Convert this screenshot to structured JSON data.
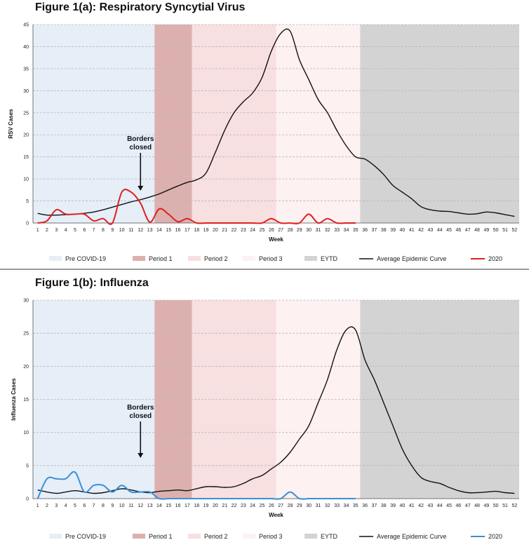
{
  "chart_data": [
    {
      "type": "line",
      "title": "Figure 1(a): Respiratory Syncytial Virus",
      "xlabel": "Week",
      "ylabel": "RSV Cases",
      "xlim": [
        1,
        52
      ],
      "ylim": [
        0,
        45
      ],
      "y_ticks": [
        0,
        5,
        10,
        15,
        20,
        25,
        30,
        35,
        40,
        45
      ],
      "x_ticks": [
        1,
        2,
        3,
        4,
        5,
        6,
        7,
        8,
        9,
        10,
        11,
        12,
        13,
        14,
        15,
        16,
        17,
        18,
        19,
        20,
        21,
        22,
        23,
        24,
        25,
        26,
        27,
        28,
        29,
        30,
        31,
        32,
        33,
        34,
        35,
        36,
        37,
        38,
        39,
        40,
        41,
        42,
        43,
        44,
        45,
        46,
        47,
        48,
        49,
        50,
        51,
        52
      ],
      "grid": true,
      "legend_position": "bottom",
      "periods": [
        {
          "name": "Pre COVID-19",
          "start": 0.5,
          "end": 13.5,
          "color": "#e6eef8"
        },
        {
          "name": "Period 1",
          "start": 13.5,
          "end": 17.5,
          "color": "#ddb0b0"
        },
        {
          "name": "Period 2",
          "start": 17.5,
          "end": 26.5,
          "color": "#f8dfe0"
        },
        {
          "name": "Period 3",
          "start": 26.5,
          "end": 35.5,
          "color": "#fdf1f1"
        },
        {
          "name": "EYTD",
          "start": 35.5,
          "end": 52.5,
          "color": "#d3d3d3"
        }
      ],
      "annotation": {
        "lines": [
          "Borders",
          "closed"
        ],
        "x": 12
      },
      "series": [
        {
          "name": "Average Epidemic Curve",
          "color": "#111111",
          "x": [
            1,
            2,
            3,
            4,
            5,
            6,
            7,
            8,
            9,
            10,
            11,
            12,
            13,
            14,
            15,
            16,
            17,
            18,
            19,
            20,
            21,
            22,
            23,
            24,
            25,
            26,
            27,
            28,
            29,
            30,
            31,
            32,
            33,
            34,
            35,
            36,
            37,
            38,
            39,
            40,
            41,
            42,
            43,
            44,
            45,
            46,
            47,
            48,
            49,
            50,
            51,
            52
          ],
          "values": [
            2.2,
            1.8,
            1.8,
            1.9,
            2.0,
            2.2,
            2.5,
            3.0,
            3.6,
            4.2,
            4.8,
            5.3,
            5.9,
            6.6,
            7.5,
            8.4,
            9.2,
            9.8,
            11.3,
            16.0,
            21.0,
            25.0,
            27.5,
            29.5,
            33.0,
            39.0,
            43.0,
            43.5,
            37.0,
            32.5,
            28.0,
            25.0,
            21.0,
            17.5,
            15.0,
            14.5,
            13.0,
            11.0,
            8.5,
            7.0,
            5.5,
            3.7,
            3.0,
            2.7,
            2.6,
            2.3,
            2.0,
            2.1,
            2.5,
            2.3,
            1.9,
            1.5
          ]
        },
        {
          "name": "2020",
          "color": "#e02020",
          "x": [
            1,
            2,
            3,
            4,
            5,
            6,
            7,
            8,
            9,
            10,
            11,
            12,
            13,
            14,
            15,
            16,
            17,
            18,
            19,
            20,
            21,
            22,
            23,
            24,
            25,
            26,
            27,
            28,
            29,
            30,
            31,
            32,
            33,
            34,
            35
          ],
          "values": [
            0,
            0.5,
            3.0,
            2.0,
            2.0,
            2.0,
            0.5,
            1.0,
            0,
            7.0,
            7.0,
            4.5,
            0.2,
            3.2,
            2.0,
            0.3,
            1.0,
            0,
            0,
            0,
            0,
            0,
            0,
            0,
            0,
            1.0,
            0,
            0,
            0,
            2.0,
            0,
            1.0,
            0,
            0,
            0
          ]
        }
      ]
    },
    {
      "type": "line",
      "title": "Figure 1(b): Influenza",
      "xlabel": "Week",
      "ylabel": "Influenza Cases",
      "xlim": [
        1,
        52
      ],
      "ylim": [
        0,
        30
      ],
      "y_ticks": [
        0,
        5,
        10,
        15,
        20,
        25,
        30
      ],
      "x_ticks": [
        1,
        2,
        3,
        4,
        5,
        6,
        7,
        8,
        9,
        10,
        11,
        12,
        13,
        14,
        15,
        16,
        17,
        18,
        19,
        20,
        21,
        22,
        23,
        24,
        25,
        26,
        27,
        28,
        29,
        30,
        31,
        32,
        33,
        34,
        35,
        36,
        37,
        38,
        39,
        40,
        41,
        42,
        43,
        44,
        45,
        46,
        47,
        48,
        49,
        50,
        51,
        52
      ],
      "grid": true,
      "legend_position": "bottom",
      "periods": [
        {
          "name": "Pre COVID-19",
          "start": 0.5,
          "end": 13.5,
          "color": "#e6eef8"
        },
        {
          "name": "Period 1",
          "start": 13.5,
          "end": 17.5,
          "color": "#ddb0b0"
        },
        {
          "name": "Period 2",
          "start": 17.5,
          "end": 26.5,
          "color": "#f8dfe0"
        },
        {
          "name": "Period 3",
          "start": 26.5,
          "end": 35.5,
          "color": "#fdf1f1"
        },
        {
          "name": "EYTD",
          "start": 35.5,
          "end": 52.5,
          "color": "#d3d3d3"
        }
      ],
      "annotation": {
        "lines": [
          "Borders",
          "closed"
        ],
        "x": 12
      },
      "series": [
        {
          "name": "Average Epidemic Curve",
          "color": "#111111",
          "x": [
            1,
            2,
            3,
            4,
            5,
            6,
            7,
            8,
            9,
            10,
            11,
            12,
            13,
            14,
            15,
            16,
            17,
            18,
            19,
            20,
            21,
            22,
            23,
            24,
            25,
            26,
            27,
            28,
            29,
            30,
            31,
            32,
            33,
            34,
            35,
            36,
            37,
            38,
            39,
            40,
            41,
            42,
            43,
            44,
            45,
            46,
            47,
            48,
            49,
            50,
            51,
            52
          ],
          "values": [
            1.3,
            1.0,
            0.8,
            1.0,
            1.2,
            1.0,
            0.8,
            0.9,
            1.2,
            1.5,
            1.3,
            1.0,
            0.9,
            1.1,
            1.2,
            1.3,
            1.2,
            1.5,
            1.8,
            1.8,
            1.7,
            1.8,
            2.3,
            3.0,
            3.5,
            4.5,
            5.5,
            7.0,
            9.0,
            11.0,
            14.5,
            18.0,
            22.5,
            25.5,
            25.5,
            21.0,
            18.0,
            14.5,
            11.0,
            7.5,
            5.0,
            3.2,
            2.6,
            2.3,
            1.7,
            1.2,
            0.9,
            0.9,
            1.0,
            1.1,
            0.9,
            0.8
          ]
        },
        {
          "name": "2020",
          "color": "#3a8fd6",
          "x": [
            1,
            2,
            3,
            4,
            5,
            6,
            7,
            8,
            9,
            10,
            11,
            12,
            13,
            14,
            15,
            16,
            17,
            18,
            19,
            20,
            21,
            22,
            23,
            24,
            25,
            26,
            27,
            28,
            29,
            30,
            31,
            32,
            33,
            34,
            35
          ],
          "values": [
            0,
            3.0,
            3.0,
            3.0,
            4.0,
            1.0,
            2.0,
            2.0,
            1.0,
            2.0,
            1.0,
            1.0,
            1.0,
            0,
            0,
            0,
            0,
            0,
            0,
            0,
            0,
            0,
            0,
            0,
            0,
            0,
            0,
            1.0,
            0,
            0,
            0,
            0,
            0,
            0,
            0
          ]
        }
      ]
    }
  ]
}
